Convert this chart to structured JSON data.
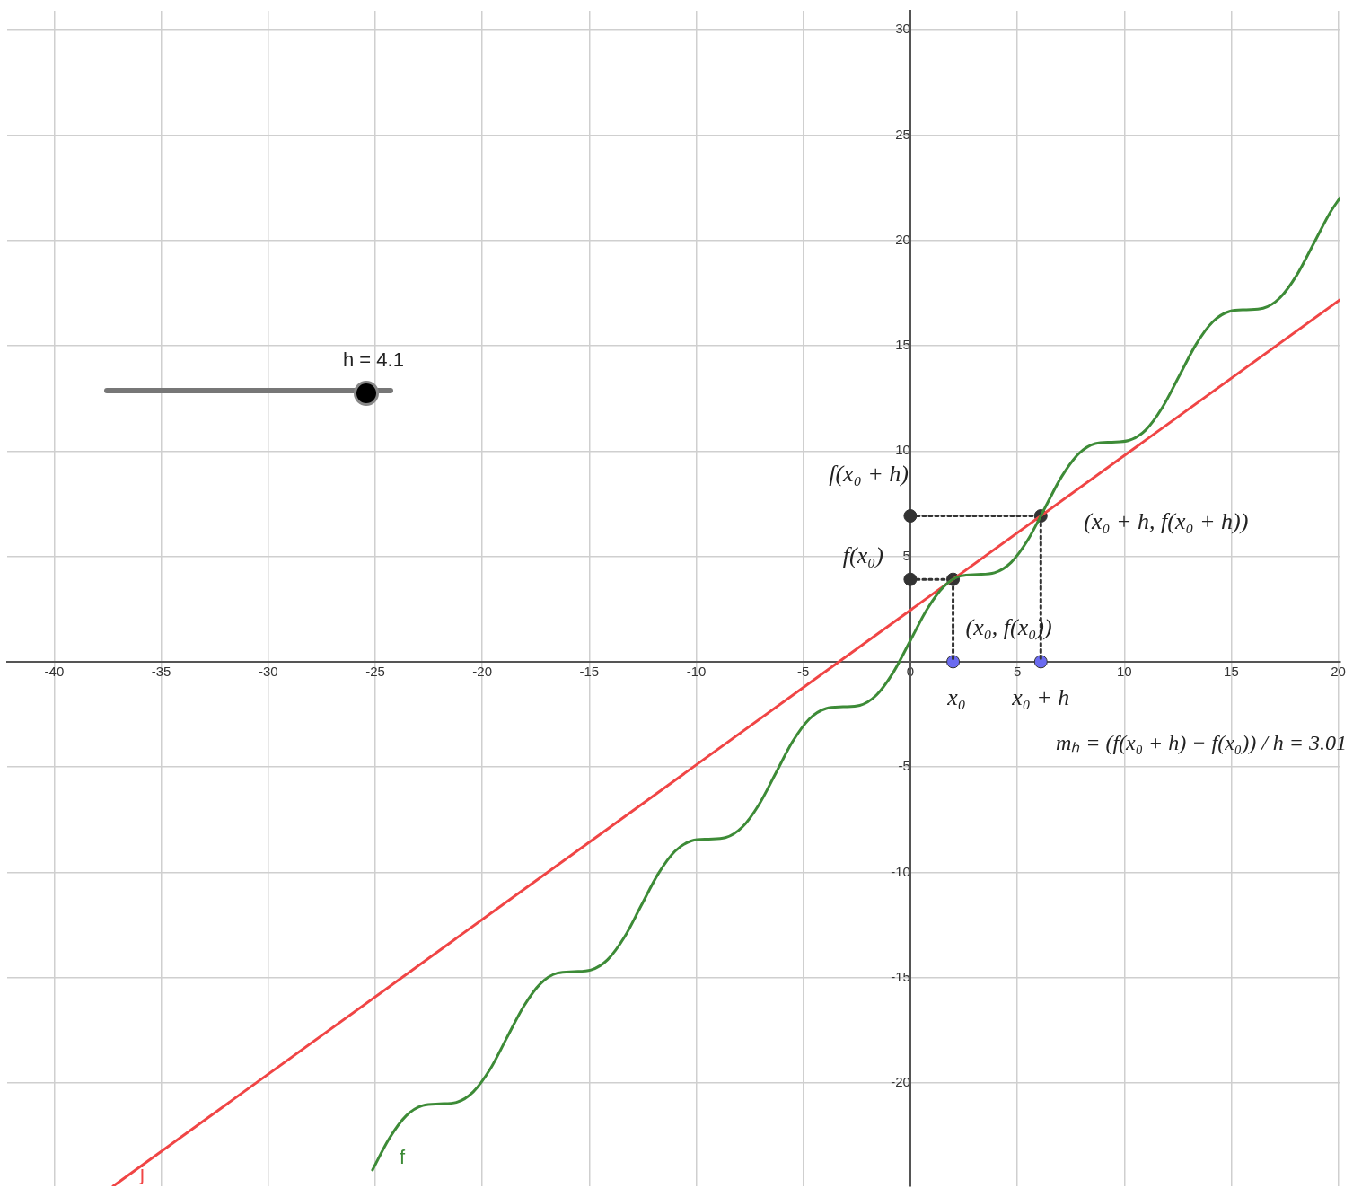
{
  "chart_data": {
    "type": "line",
    "xlim": [
      -42.2,
      20.1
    ],
    "ylim": [
      -24.9,
      30.9
    ],
    "xticks": [
      -40,
      -35,
      -30,
      -25,
      -20,
      -15,
      -10,
      -5,
      0,
      5,
      10,
      15,
      20
    ],
    "yticks": [
      -20,
      -15,
      -10,
      -5,
      {
        "value": 0,
        "label": null
      },
      5,
      10,
      15,
      20,
      25,
      30
    ],
    "grid": true,
    "legend": false,
    "series": [
      {
        "name": "f",
        "type": "line",
        "color": "#3d8b37",
        "line_style": "solid",
        "marker": "none",
        "x": [
          -25.13,
          -24.35,
          -23.56,
          -22.78,
          -21.99,
          -21.21,
          -20.42,
          -19.63,
          -18.85,
          -18.06,
          -17.28,
          -16.49,
          -15.71,
          -14.92,
          -14.14,
          -13.35,
          -12.57,
          -11.78,
          -11.0,
          -10.21,
          -9.42,
          -8.64,
          -7.85,
          -7.07,
          -6.28,
          -5.5,
          -4.71,
          -3.93,
          -3.14,
          -2.36,
          -1.57,
          -0.79,
          0,
          0.79,
          1.57,
          2.36,
          3.14,
          3.93,
          4.71,
          5.5,
          6.28,
          7.07,
          7.85,
          8.64,
          9.42,
          10.21,
          11.0,
          11.78,
          12.57,
          13.35,
          14.14,
          14.92,
          15.71,
          16.49,
          17.28,
          18.06,
          18.85,
          19.63,
          20.1
        ],
        "values": [
          -24.13,
          -22.64,
          -21.56,
          -21.07,
          -20.99,
          -20.92,
          -20.42,
          -19.34,
          -17.85,
          -16.35,
          -15.28,
          -14.78,
          -14.71,
          -14.63,
          -14.14,
          -13.06,
          -11.57,
          -10.07,
          -9.0,
          -8.5,
          -8.42,
          -8.35,
          -7.85,
          -6.78,
          -5.28,
          -3.79,
          -2.71,
          -2.22,
          -2.14,
          -2.07,
          -1.57,
          -0.5,
          1.0,
          2.5,
          3.57,
          4.07,
          4.14,
          4.22,
          4.71,
          5.79,
          7.28,
          8.78,
          9.85,
          10.35,
          10.42,
          10.5,
          11.0,
          12.07,
          13.57,
          15.06,
          16.14,
          16.63,
          16.71,
          16.78,
          17.28,
          18.35,
          19.85,
          21.34,
          22.05
        ]
      },
      {
        "name": "j",
        "type": "line",
        "color": "#f04545",
        "line_style": "solid",
        "marker": "none",
        "x": [
          -37.25,
          20.1
        ],
        "values": [
          -24.9,
          17.2
        ]
      },
      {
        "type": "line",
        "color": "#333333",
        "line_style": "dotted",
        "marker": "none",
        "x": [
          0,
          6.1,
          6.1
        ],
        "values": [
          6.92,
          6.92,
          0
        ]
      },
      {
        "type": "line",
        "color": "#333333",
        "line_style": "dotted",
        "marker": "none",
        "x": [
          0,
          2,
          2
        ],
        "values": [
          3.91,
          3.91,
          0
        ]
      },
      {
        "type": "scatter",
        "color": "#333333",
        "marker": "circle",
        "x": [
          0,
          0,
          2,
          6.1
        ],
        "values": [
          6.92,
          3.91,
          3.91,
          6.92
        ]
      },
      {
        "type": "scatter",
        "color": "#6b6bf0",
        "marker": "circle",
        "x": [
          2,
          6.1
        ],
        "values": [
          0,
          0
        ]
      }
    ],
    "annotations": [
      "h = 4.1",
      "mₕ = (f(x₀ + h) − f(x₀)) / h = 3.01",
      {
        "text": "f(x₀ + h)",
        "x": 0,
        "y": 6.92
      },
      {
        "text": "f(x₀)",
        "x": 0,
        "y": 3.91
      },
      {
        "text": "(x₀ + h, f(x₀ + h))",
        "x": 6.1,
        "y": 6.92
      },
      {
        "text": "(x₀, f(x₀))",
        "x": 2,
        "y": 3.91
      },
      {
        "text": "x₀",
        "x": 2,
        "y": 0
      },
      {
        "text": "x₀ + h",
        "x": 6.1,
        "y": 0
      }
    ]
  }
}
